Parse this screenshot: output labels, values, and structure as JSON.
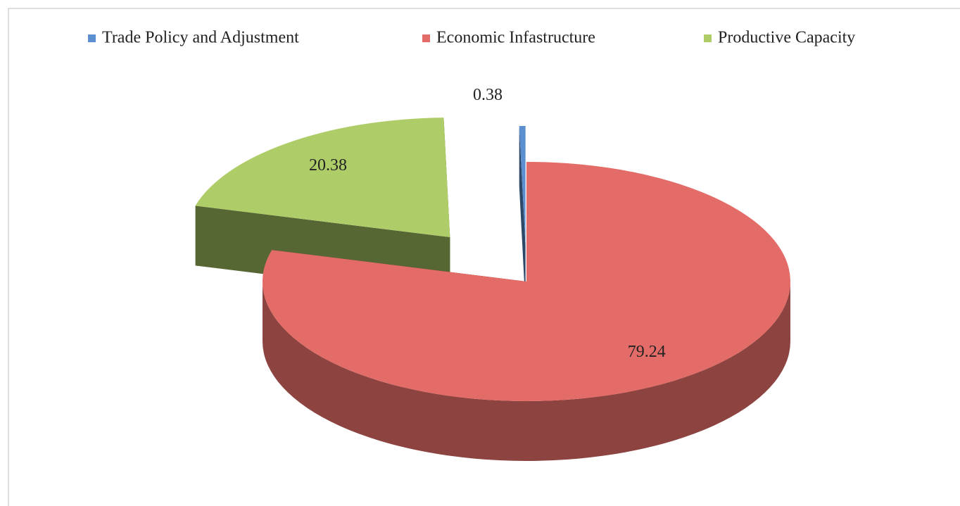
{
  "chart_data": {
    "type": "pie3d",
    "categories": [
      "Trade Policy and Adjustment",
      "Economic Infastructure",
      "Productive Capacity"
    ],
    "values": [
      0.38,
      79.24,
      20.38
    ],
    "colors": [
      "#5b8fcf",
      "#e46c68",
      "#aecd68"
    ],
    "legend": "top"
  }
}
